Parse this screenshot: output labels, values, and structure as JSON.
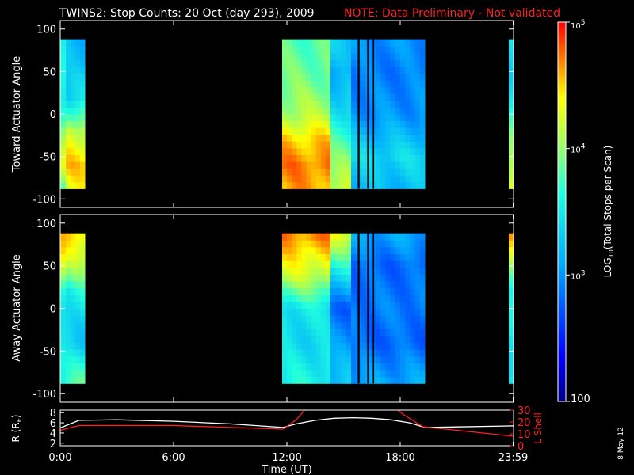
{
  "header": {
    "title": "TWINS2: Stop Counts: 20 Oct (day 293), 2009",
    "note": "NOTE: Data Preliminary - Not validated"
  },
  "date_stamp": "8 May 12",
  "colors": {
    "background": "#000000",
    "axes": "#ffffff",
    "note": "#ff2020",
    "lshell": "#ff2020",
    "radius": "#ffffff"
  },
  "chart_data": [
    {
      "type": "heatmap",
      "name": "toward",
      "ylabel": "Toward Actuator Angle",
      "ylim": [
        -110,
        110
      ],
      "yticks": [
        -100,
        -50,
        0,
        50,
        100
      ],
      "xlim_hours": [
        0,
        24
      ],
      "data_yrange": [
        -88,
        88
      ],
      "log_counts_columns": [
        {
          "t": [
            0.0,
            0.3
          ],
          "profile": [
            [
              -88,
              3.8
            ],
            [
              -60,
              4.2
            ],
            [
              -20,
              4.0
            ],
            [
              20,
              3.6
            ],
            [
              60,
              3.5
            ],
            [
              88,
              3.5
            ]
          ]
        },
        {
          "t": [
            0.3,
            1.3
          ],
          "profile": [
            [
              -88,
              4.3
            ],
            [
              -60,
              4.5
            ],
            [
              -20,
              4.2
            ],
            [
              20,
              3.4
            ],
            [
              60,
              3.2
            ],
            [
              88,
              3.2
            ]
          ]
        },
        {
          "t": [
            11.75,
            14.3
          ],
          "profile": [
            [
              -88,
              4.6
            ],
            [
              -60,
              4.7
            ],
            [
              -30,
              4.5
            ],
            [
              0,
              4.1
            ],
            [
              40,
              3.9
            ],
            [
              88,
              3.8
            ]
          ]
        },
        {
          "t": [
            14.3,
            15.4
          ],
          "profile": [
            [
              -88,
              4.2
            ],
            [
              -50,
              3.9
            ],
            [
              0,
              3.5
            ],
            [
              50,
              3.1
            ],
            [
              88,
              3.3
            ]
          ]
        },
        {
          "t": [
            15.4,
            19.3
          ],
          "profile": [
            [
              -88,
              3.2
            ],
            [
              -50,
              3.4
            ],
            [
              0,
              3.0
            ],
            [
              50,
              2.9
            ],
            [
              88,
              3.0
            ]
          ]
        },
        {
          "t": [
            23.75,
            24.0
          ],
          "profile": [
            [
              -88,
              4.4
            ],
            [
              -50,
              4.1
            ],
            [
              0,
              3.6
            ],
            [
              50,
              3.4
            ],
            [
              88,
              3.4
            ]
          ]
        }
      ],
      "data_gaps_hours": [
        [
          15.75,
          15.85
        ],
        [
          16.25,
          16.32
        ],
        [
          16.55,
          16.62
        ]
      ]
    },
    {
      "type": "heatmap",
      "name": "away",
      "ylabel": "Away Actuator Angle",
      "ylim": [
        -110,
        110
      ],
      "yticks": [
        -100,
        -50,
        0,
        50,
        100
      ],
      "xlim_hours": [
        0,
        24
      ],
      "data_yrange": [
        -88,
        88
      ],
      "log_counts_columns": [
        {
          "t": [
            0.0,
            0.3
          ],
          "profile": [
            [
              -88,
              3.6
            ],
            [
              -40,
              3.4
            ],
            [
              20,
              3.7
            ],
            [
              60,
              4.3
            ],
            [
              88,
              4.6
            ]
          ]
        },
        {
          "t": [
            0.3,
            1.3
          ],
          "profile": [
            [
              -88,
              3.8
            ],
            [
              -40,
              3.3
            ],
            [
              20,
              3.6
            ],
            [
              60,
              4.2
            ],
            [
              88,
              4.5
            ]
          ]
        },
        {
          "t": [
            11.75,
            14.3
          ],
          "profile": [
            [
              -88,
              3.6
            ],
            [
              -40,
              3.4
            ],
            [
              0,
              3.5
            ],
            [
              40,
              4.2
            ],
            [
              88,
              4.7
            ]
          ]
        },
        {
          "t": [
            14.3,
            15.4
          ],
          "profile": [
            [
              -88,
              3.3
            ],
            [
              -40,
              3.0
            ],
            [
              0,
              2.8
            ],
            [
              50,
              3.6
            ],
            [
              88,
              4.3
            ]
          ]
        },
        {
          "t": [
            15.4,
            19.3
          ],
          "profile": [
            [
              -88,
              3.1
            ],
            [
              -40,
              2.8
            ],
            [
              0,
              2.9
            ],
            [
              50,
              2.8
            ],
            [
              88,
              3.1
            ]
          ]
        },
        {
          "t": [
            23.75,
            24.0
          ],
          "profile": [
            [
              -88,
              3.6
            ],
            [
              -40,
              3.4
            ],
            [
              20,
              3.6
            ],
            [
              60,
              4.3
            ],
            [
              88,
              4.6
            ]
          ]
        }
      ],
      "data_gaps_hours": [
        [
          15.75,
          15.85
        ],
        [
          16.25,
          16.32
        ],
        [
          16.55,
          16.62
        ]
      ]
    },
    {
      "type": "line",
      "name": "orbit",
      "xlabel": "Time (UT)",
      "xlim_hours": [
        0,
        24
      ],
      "xticks": [
        {
          "h": 0,
          "label": "0:00"
        },
        {
          "h": 6,
          "label": "6:00"
        },
        {
          "h": 12,
          "label": "12:00"
        },
        {
          "h": 18,
          "label": "18:00"
        },
        {
          "h": 23.98,
          "label": "23:59"
        }
      ],
      "left_axis": {
        "label": "R (RE)",
        "label_main": "R (R",
        "label_sub": "E",
        "label_end": ")",
        "ylim": [
          1.5,
          8.5
        ],
        "ticks": [
          2,
          4,
          6,
          8
        ]
      },
      "right_axis": {
        "label": "L Shell",
        "ylim": [
          0,
          30
        ],
        "ticks": [
          0,
          10,
          20,
          30
        ]
      },
      "series": [
        {
          "axis": "left",
          "color": "#ffffff",
          "x": [
            0,
            1,
            3,
            6,
            9,
            11.8,
            12.5,
            13.5,
            14.5,
            15.5,
            16.5,
            17.5,
            18.5,
            19.3,
            21,
            24
          ],
          "y": [
            5.0,
            6.5,
            6.6,
            6.3,
            5.8,
            5.1,
            5.8,
            6.5,
            6.9,
            7.0,
            6.9,
            6.6,
            6.0,
            5.1,
            5.2,
            5.4
          ]
        },
        {
          "axis": "right",
          "color": "#ff2020",
          "x": [
            0,
            1,
            6,
            11.8,
            12.5,
            13.0,
            17.8,
            18.2,
            19.2,
            21,
            24
          ],
          "y": [
            13,
            17,
            17,
            14,
            22,
            31,
            31,
            26,
            16,
            13,
            8
          ]
        }
      ]
    }
  ],
  "colorbar": {
    "label_prefix": "LOG",
    "label_sub": "10",
    "label_suffix": "(Total Stops per Scan)",
    "vmin_log": 2,
    "vmax_log": 5,
    "ticks": [
      {
        "v": 5,
        "base": "10",
        "exp": "5"
      },
      {
        "v": 4,
        "base": "10",
        "exp": "4"
      },
      {
        "v": 3,
        "base": "10",
        "exp": "3"
      },
      {
        "v": 2,
        "base": "100",
        "exp": ""
      }
    ]
  }
}
